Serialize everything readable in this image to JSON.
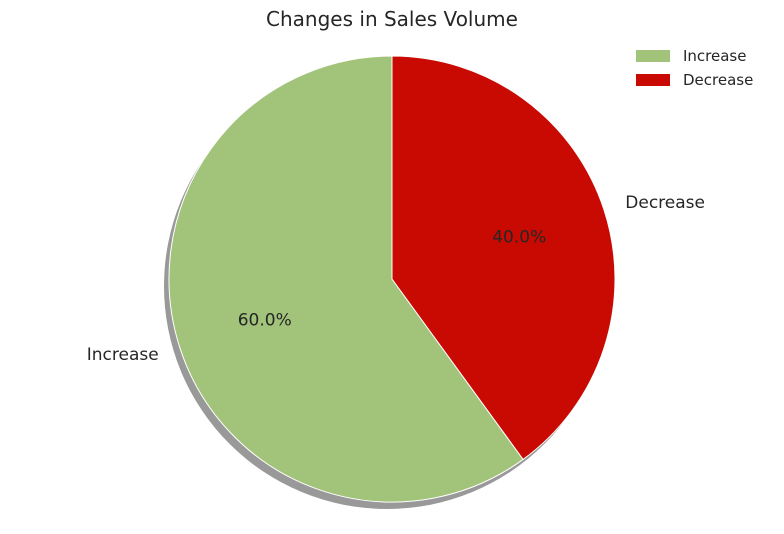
{
  "chart_data": {
    "type": "pie",
    "title": "Changes in Sales Volume",
    "categories": [
      "Increase",
      "Decrease"
    ],
    "values": [
      60,
      40
    ],
    "percent_labels": [
      "60.0%",
      "40.0%"
    ],
    "colors": [
      "#a1c37a",
      "#c90a02"
    ],
    "shadow_color": "#999999",
    "start_angle_deg": 90,
    "direction": "counterclockwise",
    "legend": {
      "placement": "top-right",
      "entries": [
        "Increase",
        "Decrease"
      ]
    }
  }
}
